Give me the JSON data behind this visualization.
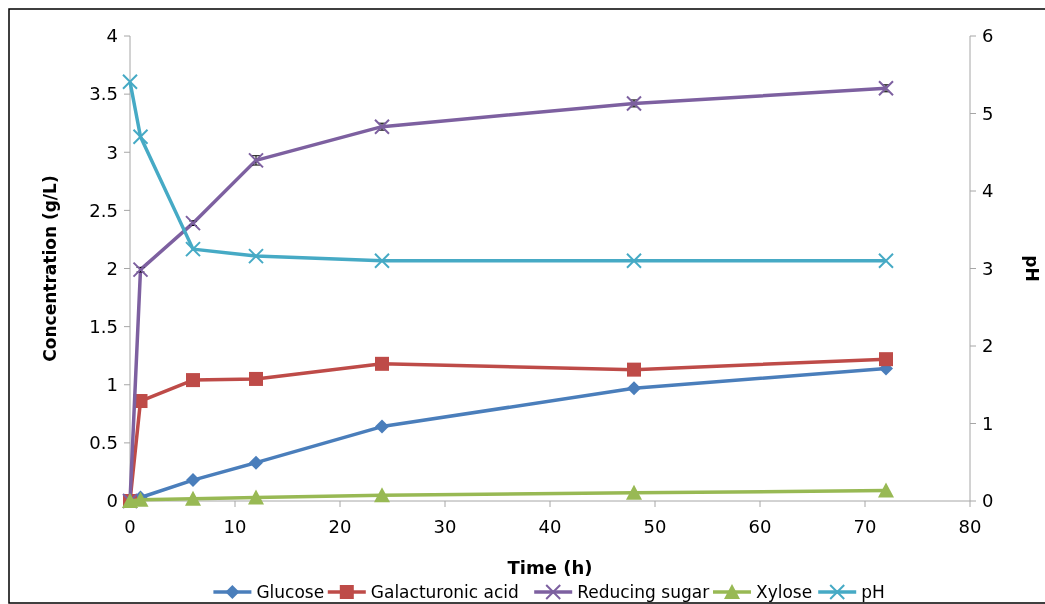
{
  "chart_data": {
    "type": "line",
    "xlabel": "Time (h)",
    "ylabel": "Concentration (g/L)",
    "y2label": "pH",
    "x": [
      0,
      1,
      6,
      12,
      24,
      48,
      72
    ],
    "xlim": [
      0,
      80
    ],
    "xticks": [
      0,
      10,
      20,
      30,
      40,
      50,
      60,
      70,
      80
    ],
    "ylim": [
      0,
      4
    ],
    "yticks": [
      0,
      0.5,
      1,
      1.5,
      2,
      2.5,
      3,
      3.5,
      4
    ],
    "y2lim": [
      0,
      6
    ],
    "y2ticks": [
      0,
      1,
      2,
      3,
      4,
      5,
      6
    ],
    "grid": false,
    "legend": "bottom",
    "series": [
      {
        "name": "Glucose",
        "color": "#4a7ebb",
        "marker": "diamond",
        "values": [
          0,
          0.03,
          0.18,
          0.33,
          0.64,
          0.97,
          1.14
        ]
      },
      {
        "name": "Galacturonic acid",
        "color": "#be4b48",
        "marker": "square",
        "values": [
          0,
          0.86,
          1.04,
          1.05,
          1.18,
          1.13,
          1.22
        ]
      },
      {
        "name": "Reducing sugar",
        "color": "#7d60a0",
        "marker": "cross",
        "values": [
          0,
          1.99,
          2.39,
          2.93,
          3.22,
          3.42,
          3.55
        ],
        "errors": [
          null,
          0.02,
          0.02,
          0.04,
          0.03,
          0.03,
          0.03
        ]
      },
      {
        "name": "Xylose",
        "color": "#98b954",
        "marker": "triangle",
        "values": [
          0,
          0.01,
          0.02,
          0.03,
          0.05,
          0.07,
          0.09
        ]
      },
      {
        "name": "pH",
        "color": "#46aac5",
        "marker": "cross",
        "axis": "y2",
        "values": [
          5.41,
          4.7,
          3.25,
          3.16,
          3.1,
          3.1,
          3.1
        ]
      }
    ]
  }
}
